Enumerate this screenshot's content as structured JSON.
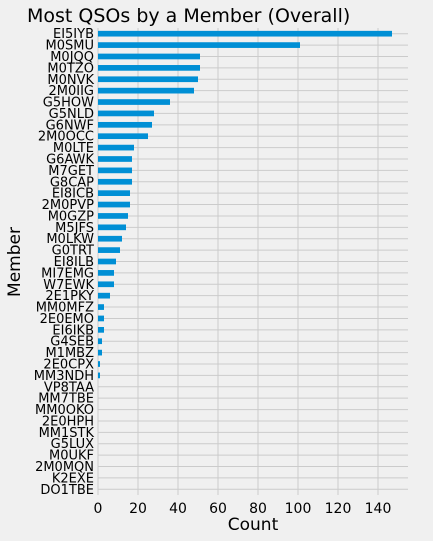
{
  "chart_data": {
    "type": "bar",
    "orientation": "horizontal",
    "title": "Most QSOs by a Member (Overall)",
    "xlabel": "Count",
    "ylabel": "Member",
    "xlim": [
      0,
      155
    ],
    "xticks": [
      0,
      20,
      40,
      60,
      80,
      100,
      120,
      140
    ],
    "grid": true,
    "bar_color": "#008fd5",
    "background": "#f0f0f0",
    "categories": [
      "EI5IYB",
      "M0SMU",
      "M0JQQ",
      "M0TZO",
      "M0NVK",
      "2M0IIG",
      "G5HOW",
      "G5NLD",
      "G6NWF",
      "2M0OCC",
      "M0LTE",
      "G6AWK",
      "M7GET",
      "G8CAP",
      "EI8ICB",
      "2M0PVP",
      "M0GZP",
      "M5JFS",
      "M0LKW",
      "G0TRT",
      "EI8ILB",
      "MI7EMG",
      "W7EWK",
      "2E1PKY",
      "MM0MFZ",
      "2E0EMO",
      "EI6IKB",
      "G4SEB",
      "M1MBZ",
      "2E0CPX",
      "MM3NDH",
      "VP8TAA",
      "MM7TBE",
      "MM0OKO",
      "2E0HPH",
      "MM1STK",
      "G5LUX",
      "M0UKF",
      "2M0MQN",
      "K2EXE",
      "DO1TBE"
    ],
    "values": [
      147,
      101,
      51,
      51,
      50,
      48,
      36,
      28,
      27,
      25,
      18,
      17,
      17,
      17,
      16,
      16,
      15,
      14,
      12,
      11,
      9,
      8,
      8,
      6,
      3,
      3,
      3,
      2,
      2,
      1,
      1,
      0,
      0,
      0,
      0,
      0,
      0,
      0,
      0,
      0,
      0
    ]
  }
}
